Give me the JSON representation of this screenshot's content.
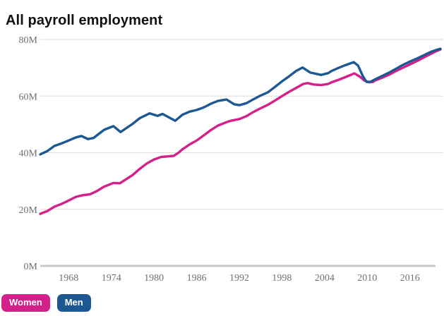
{
  "title": "All payroll employment",
  "legend": {
    "items": [
      {
        "label": "Women",
        "color": "#d3208b"
      },
      {
        "label": "Men",
        "color": "#1d5893"
      }
    ]
  },
  "colors": {
    "background": "#ffffff",
    "title_text": "#121212",
    "tick_text": "#6e7179",
    "gridline": "#dddddd",
    "baseline": "#c9c9c9",
    "women_line": "#d3208b",
    "men_line": "#1d5893"
  },
  "chart_data": {
    "type": "line",
    "title": "All payroll employment",
    "xlabel": "",
    "ylabel": "",
    "unit": "M",
    "grid": true,
    "legend_position": "bottom-left",
    "x_range": [
      1964,
      2020.3
    ],
    "y_range": [
      0,
      80
    ],
    "x_ticks": [
      1968,
      1974,
      1980,
      1986,
      1992,
      1998,
      2004,
      2010,
      2016
    ],
    "y_ticks": [
      0,
      20,
      40,
      60,
      80
    ],
    "y_tick_suffix": "M",
    "series": [
      {
        "name": "Women",
        "color": "#d3208b",
        "points": [
          [
            1964,
            18.4
          ],
          [
            1965,
            19.4
          ],
          [
            1966,
            20.9
          ],
          [
            1967,
            21.9
          ],
          [
            1968,
            23.1
          ],
          [
            1969,
            24.4
          ],
          [
            1970,
            25.0
          ],
          [
            1971,
            25.3
          ],
          [
            1972,
            26.5
          ],
          [
            1973,
            28.0
          ],
          [
            1974.3,
            29.3
          ],
          [
            1975.2,
            29.2
          ],
          [
            1976,
            30.5
          ],
          [
            1977,
            32.1
          ],
          [
            1978,
            34.3
          ],
          [
            1979,
            36.2
          ],
          [
            1980,
            37.6
          ],
          [
            1981,
            38.5
          ],
          [
            1982,
            38.7
          ],
          [
            1982.8,
            38.9
          ],
          [
            1983.5,
            40.1
          ],
          [
            1984,
            41.2
          ],
          [
            1985,
            42.9
          ],
          [
            1986,
            44.3
          ],
          [
            1987,
            46.1
          ],
          [
            1988,
            48.0
          ],
          [
            1989,
            49.6
          ],
          [
            1990.3,
            50.9
          ],
          [
            1991,
            51.4
          ],
          [
            1992,
            51.9
          ],
          [
            1993,
            52.9
          ],
          [
            1994,
            54.4
          ],
          [
            1995,
            55.7
          ],
          [
            1996,
            56.9
          ],
          [
            1997,
            58.4
          ],
          [
            1998,
            60.0
          ],
          [
            1999,
            61.5
          ],
          [
            2000,
            62.9
          ],
          [
            2001,
            64.3
          ],
          [
            2001.6,
            64.6
          ],
          [
            2002.5,
            64.1
          ],
          [
            2003.5,
            63.9
          ],
          [
            2004.5,
            64.3
          ],
          [
            2005,
            64.9
          ],
          [
            2006,
            65.8
          ],
          [
            2007,
            66.8
          ],
          [
            2008.2,
            68.0
          ],
          [
            2009,
            66.8
          ],
          [
            2009.6,
            65.5
          ],
          [
            2010.2,
            64.9
          ],
          [
            2010.8,
            65.0
          ],
          [
            2011,
            65.4
          ],
          [
            2012,
            66.4
          ],
          [
            2013,
            67.5
          ],
          [
            2014,
            68.8
          ],
          [
            2015,
            70.0
          ],
          [
            2016,
            71.2
          ],
          [
            2017,
            72.4
          ],
          [
            2018,
            73.7
          ],
          [
            2019,
            75.0
          ],
          [
            2019.7,
            75.9
          ],
          [
            2020.3,
            76.5
          ]
        ]
      },
      {
        "name": "Men",
        "color": "#1d5893",
        "points": [
          [
            1964,
            39.4
          ],
          [
            1965,
            40.6
          ],
          [
            1966,
            42.4
          ],
          [
            1967,
            43.3
          ],
          [
            1968,
            44.3
          ],
          [
            1969,
            45.4
          ],
          [
            1969.8,
            45.9
          ],
          [
            1970.7,
            44.8
          ],
          [
            1971.5,
            45.2
          ],
          [
            1972,
            46.2
          ],
          [
            1973,
            48.1
          ],
          [
            1974.3,
            49.4
          ],
          [
            1975.3,
            47.3
          ],
          [
            1976,
            48.5
          ],
          [
            1977,
            50.2
          ],
          [
            1978,
            52.2
          ],
          [
            1979.4,
            53.9
          ],
          [
            1980.5,
            53.0
          ],
          [
            1981.2,
            53.7
          ],
          [
            1982,
            52.6
          ],
          [
            1983,
            51.3
          ],
          [
            1984,
            53.4
          ],
          [
            1985,
            54.5
          ],
          [
            1986,
            55.1
          ],
          [
            1987,
            56.0
          ],
          [
            1988,
            57.3
          ],
          [
            1989,
            58.3
          ],
          [
            1990.2,
            58.8
          ],
          [
            1991.3,
            57.1
          ],
          [
            1992,
            56.8
          ],
          [
            1993,
            57.5
          ],
          [
            1994,
            58.9
          ],
          [
            1995,
            60.2
          ],
          [
            1996,
            61.3
          ],
          [
            1997,
            63.2
          ],
          [
            1998,
            65.2
          ],
          [
            1999,
            67.0
          ],
          [
            2000,
            68.9
          ],
          [
            2000.9,
            70.1
          ],
          [
            2002,
            68.3
          ],
          [
            2003.5,
            67.5
          ],
          [
            2004.5,
            68.1
          ],
          [
            2005,
            68.9
          ],
          [
            2006,
            70.0
          ],
          [
            2007,
            71.0
          ],
          [
            2008.1,
            72.0
          ],
          [
            2008.7,
            70.8
          ],
          [
            2009.4,
            67.0
          ],
          [
            2009.9,
            65.0
          ],
          [
            2010.5,
            65.1
          ],
          [
            2011,
            65.8
          ],
          [
            2012,
            67.0
          ],
          [
            2013,
            68.2
          ],
          [
            2014,
            69.6
          ],
          [
            2015,
            71.0
          ],
          [
            2016,
            72.2
          ],
          [
            2017,
            73.3
          ],
          [
            2018,
            74.5
          ],
          [
            2019,
            75.7
          ],
          [
            2019.7,
            76.3
          ],
          [
            2020.3,
            76.7
          ]
        ]
      }
    ]
  }
}
